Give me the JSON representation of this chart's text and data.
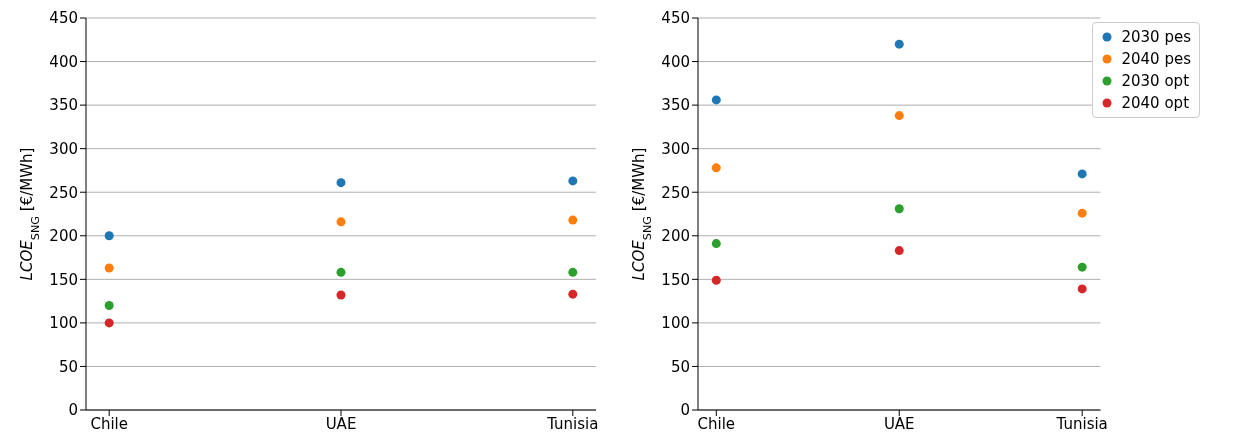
{
  "chart_data": [
    {
      "type": "scatter",
      "ylabel": "LCOE$_{SNG}$ [€/MWh]",
      "categories": [
        "Chile",
        "UAE",
        "Tunisia"
      ],
      "ylim": [
        0,
        450
      ],
      "yticks": [
        0,
        50,
        100,
        150,
        200,
        250,
        300,
        350,
        400,
        450
      ],
      "grid": "y",
      "legend": false,
      "marker": "circle",
      "series": [
        {
          "color": "#1f77b4",
          "values": [
            200,
            261,
            263
          ]
        },
        {
          "color": "#ff7f0e",
          "values": [
            163,
            216,
            218
          ]
        },
        {
          "color": "#2ca02c",
          "values": [
            120,
            158,
            158
          ]
        },
        {
          "color": "#d62728",
          "values": [
            100,
            132,
            133
          ]
        }
      ]
    },
    {
      "type": "scatter",
      "ylabel": "LCOE$_{SNG}$ [€/MWh]",
      "categories": [
        "Chile",
        "UAE",
        "Tunisia"
      ],
      "ylim": [
        0,
        450
      ],
      "yticks": [
        0,
        50,
        100,
        150,
        200,
        250,
        300,
        350,
        400,
        450
      ],
      "grid": "y",
      "legend": "top right",
      "marker": "circle",
      "series": [
        {
          "name": "2030 pes",
          "color": "#1f77b4",
          "values": [
            356,
            420,
            271
          ]
        },
        {
          "name": "2040 pes",
          "color": "#ff7f0e",
          "values": [
            278,
            338,
            226
          ]
        },
        {
          "name": "2030 opt",
          "color": "#2ca02c",
          "values": [
            191,
            231,
            164
          ]
        },
        {
          "name": "2040 opt",
          "color": "#d62728",
          "values": [
            149,
            183,
            139
          ]
        }
      ]
    }
  ]
}
